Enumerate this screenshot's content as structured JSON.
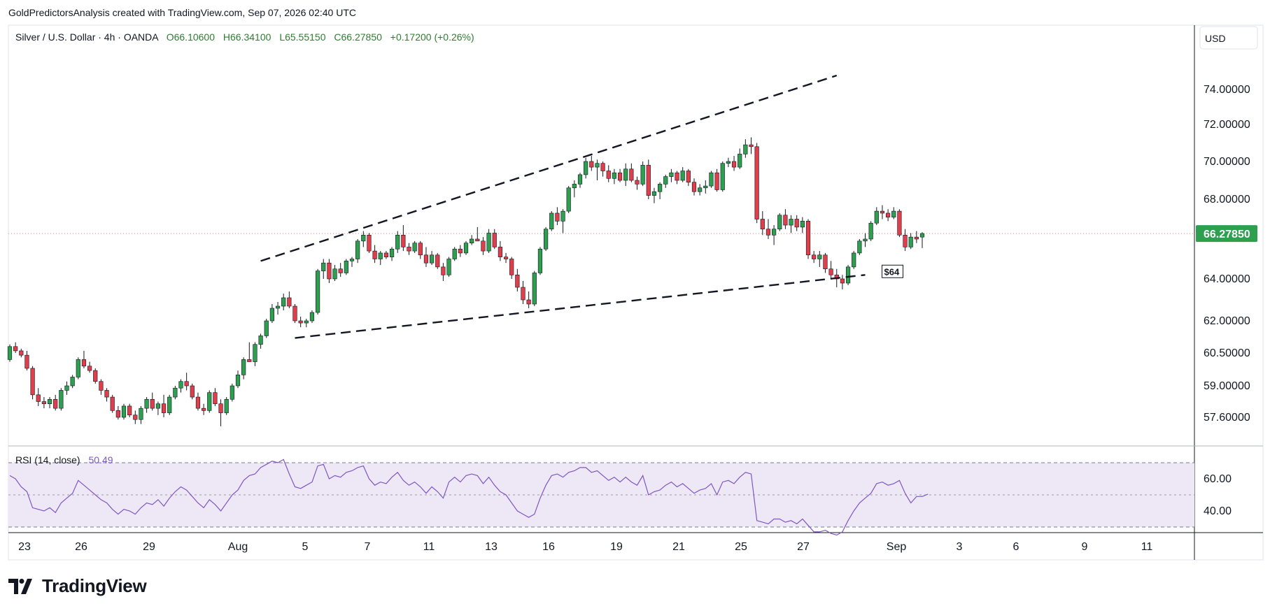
{
  "header": {
    "attribution": "GoldPredictorsAnalysis created with TradingView.com, Sep 07, 2026 02:40 UTC"
  },
  "legend": {
    "symbol": "Silver / U.S. Dollar · 4h · OANDA",
    "open": "O66.10600",
    "high": "H66.34100",
    "low": "L65.55150",
    "close": "C66.27850",
    "change": "+0.17200 (+0.26%)"
  },
  "currency_button": "USD",
  "last_price_label": "66.27850",
  "support_label": "$64",
  "rsi": {
    "label": "RSI (14, close)",
    "value": "50.49",
    "axis_labels": [
      "60.00",
      "40.00"
    ]
  },
  "price_axis_labels": [
    "74.00000",
    "72.00000",
    "70.00000",
    "68.00000",
    "64.00000",
    "62.00000",
    "60.50000",
    "59.00000",
    "57.60000"
  ],
  "time_axis_labels": [
    "23",
    "26",
    "29",
    "Aug",
    "5",
    "7",
    "11",
    "13",
    "16",
    "19",
    "21",
    "25",
    "27",
    "Sep",
    "3",
    "6",
    "9",
    "11"
  ],
  "brand": {
    "name": "TradingView"
  },
  "colors": {
    "up": "#26a69a",
    "up_fill": "#2e9e4f",
    "down": "#e03e4a",
    "rsi_line": "#7e57c2",
    "rsi_band": "#ede7f6",
    "price_tag": "#2e9e4f"
  },
  "chart_data": [
    {
      "type": "candlestick",
      "title": "Silver / U.S. Dollar · 4h · OANDA",
      "ylim": [
        56.5,
        76.5
      ],
      "price_scale_ticks": [
        74,
        72,
        70,
        68,
        64,
        62,
        60.5,
        59,
        57.6
      ],
      "last_price": 66.2785,
      "trendlines": [
        {
          "name": "upper channel",
          "from": [
            44,
            64.9
          ],
          "to": [
            145,
            74.8
          ]
        },
        {
          "name": "lower channel",
          "from": [
            50,
            61.2
          ],
          "to": [
            150,
            64.2
          ]
        }
      ],
      "annotations": [
        "$64"
      ],
      "candles": [
        [
          60.2,
          60.9,
          60.1,
          60.8
        ],
        [
          60.8,
          61.0,
          60.5,
          60.6
        ],
        [
          60.6,
          60.7,
          60.3,
          60.4
        ],
        [
          60.4,
          60.6,
          59.7,
          59.8
        ],
        [
          59.8,
          59.9,
          58.4,
          58.6
        ],
        [
          58.6,
          58.9,
          58.1,
          58.3
        ],
        [
          58.3,
          58.5,
          58.0,
          58.2
        ],
        [
          58.2,
          58.5,
          58.0,
          58.4
        ],
        [
          58.4,
          58.6,
          57.9,
          58.0
        ],
        [
          58.0,
          58.9,
          57.9,
          58.8
        ],
        [
          58.8,
          59.2,
          58.6,
          59.0
        ],
        [
          59.0,
          59.5,
          58.9,
          59.4
        ],
        [
          59.4,
          60.3,
          59.3,
          60.2
        ],
        [
          60.2,
          60.6,
          59.8,
          59.9
        ],
        [
          59.9,
          60.1,
          59.6,
          59.7
        ],
        [
          59.7,
          59.8,
          59.1,
          59.2
        ],
        [
          59.2,
          59.3,
          58.6,
          58.8
        ],
        [
          58.8,
          58.9,
          58.3,
          58.5
        ],
        [
          58.5,
          58.6,
          57.8,
          57.9
        ],
        [
          57.9,
          58.1,
          57.5,
          57.6
        ],
        [
          57.6,
          58.2,
          57.5,
          58.1
        ],
        [
          58.1,
          58.2,
          57.6,
          57.7
        ],
        [
          57.7,
          57.9,
          57.3,
          57.5
        ],
        [
          57.5,
          58.1,
          57.3,
          58.0
        ],
        [
          58.0,
          58.5,
          57.8,
          58.4
        ],
        [
          58.4,
          58.7,
          57.9,
          58.0
        ],
        [
          58.0,
          58.3,
          57.7,
          58.2
        ],
        [
          58.2,
          58.6,
          57.6,
          57.8
        ],
        [
          57.8,
          58.6,
          57.7,
          58.5
        ],
        [
          58.5,
          59.0,
          58.4,
          58.9
        ],
        [
          58.9,
          59.3,
          58.7,
          59.2
        ],
        [
          59.2,
          59.6,
          58.8,
          59.0
        ],
        [
          59.0,
          59.1,
          58.4,
          58.5
        ],
        [
          58.5,
          58.7,
          57.9,
          58.0
        ],
        [
          58.0,
          58.2,
          57.7,
          57.9
        ],
        [
          57.9,
          58.8,
          57.8,
          58.7
        ],
        [
          58.7,
          58.9,
          58.1,
          58.2
        ],
        [
          58.2,
          58.4,
          57.2,
          57.8
        ],
        [
          57.8,
          58.5,
          57.7,
          58.4
        ],
        [
          58.4,
          59.1,
          58.3,
          59.0
        ],
        [
          59.0,
          59.7,
          58.9,
          59.5
        ],
        [
          59.5,
          60.3,
          59.3,
          60.2
        ],
        [
          60.2,
          61.0,
          60.1,
          60.1
        ],
        [
          60.1,
          61.0,
          59.9,
          60.9
        ],
        [
          60.9,
          61.4,
          60.7,
          61.3
        ],
        [
          61.3,
          62.1,
          61.2,
          62.0
        ],
        [
          62.0,
          62.8,
          61.9,
          62.6
        ],
        [
          62.6,
          62.9,
          62.3,
          62.7
        ],
        [
          62.7,
          63.3,
          62.5,
          63.1
        ],
        [
          63.1,
          63.4,
          62.6,
          62.7
        ],
        [
          62.7,
          62.8,
          61.9,
          62.0
        ],
        [
          62.0,
          62.2,
          61.7,
          61.9
        ],
        [
          61.9,
          62.1,
          61.7,
          62.0
        ],
        [
          62.0,
          62.5,
          61.9,
          62.4
        ],
        [
          62.4,
          64.5,
          62.3,
          64.4
        ],
        [
          64.4,
          65.0,
          64.0,
          64.8
        ],
        [
          64.8,
          65.0,
          63.8,
          64.0
        ],
        [
          64.0,
          64.7,
          63.9,
          64.5
        ],
        [
          64.5,
          64.8,
          64.1,
          64.3
        ],
        [
          64.3,
          65.0,
          64.2,
          64.9
        ],
        [
          64.9,
          65.1,
          64.6,
          65.0
        ],
        [
          65.0,
          66.0,
          64.8,
          65.9
        ],
        [
          65.9,
          66.4,
          65.6,
          66.2
        ],
        [
          66.2,
          66.3,
          65.3,
          65.4
        ],
        [
          65.4,
          65.7,
          64.8,
          65.0
        ],
        [
          65.0,
          65.4,
          64.7,
          65.3
        ],
        [
          65.3,
          65.4,
          65.0,
          65.1
        ],
        [
          65.1,
          65.6,
          64.9,
          65.5
        ],
        [
          65.5,
          66.4,
          65.3,
          66.2
        ],
        [
          66.2,
          66.7,
          65.4,
          65.6
        ],
        [
          65.6,
          65.8,
          65.2,
          65.4
        ],
        [
          65.4,
          65.9,
          65.3,
          65.8
        ],
        [
          65.8,
          65.9,
          65.0,
          65.2
        ],
        [
          65.2,
          65.6,
          64.6,
          64.8
        ],
        [
          64.8,
          65.4,
          64.7,
          65.2
        ],
        [
          65.2,
          65.3,
          64.5,
          64.6
        ],
        [
          64.6,
          64.8,
          63.9,
          64.2
        ],
        [
          64.2,
          65.1,
          64.1,
          65.0
        ],
        [
          65.0,
          65.6,
          64.9,
          65.5
        ],
        [
          65.5,
          65.7,
          65.1,
          65.3
        ],
        [
          65.3,
          65.9,
          65.2,
          65.8
        ],
        [
          65.8,
          66.2,
          65.7,
          66.0
        ],
        [
          66.0,
          66.6,
          65.9,
          65.9
        ],
        [
          65.9,
          66.1,
          65.2,
          65.4
        ],
        [
          65.4,
          66.5,
          65.3,
          66.3
        ],
        [
          66.3,
          66.5,
          65.5,
          65.6
        ],
        [
          65.6,
          65.9,
          64.9,
          65.1
        ],
        [
          65.1,
          65.3,
          64.8,
          65.0
        ],
        [
          65.0,
          65.1,
          64.0,
          64.2
        ],
        [
          64.2,
          64.5,
          63.4,
          63.6
        ],
        [
          63.6,
          63.9,
          62.8,
          63.0
        ],
        [
          63.0,
          63.4,
          62.6,
          62.8
        ],
        [
          62.8,
          64.4,
          62.7,
          64.3
        ],
        [
          64.3,
          65.6,
          64.2,
          65.5
        ],
        [
          65.5,
          66.6,
          65.4,
          66.5
        ],
        [
          66.5,
          67.4,
          66.4,
          67.3
        ],
        [
          67.3,
          67.6,
          66.7,
          66.9
        ],
        [
          66.9,
          67.5,
          66.3,
          67.4
        ],
        [
          67.4,
          68.7,
          67.3,
          68.6
        ],
        [
          68.6,
          69.0,
          68.1,
          68.8
        ],
        [
          68.8,
          69.4,
          68.6,
          69.3
        ],
        [
          69.3,
          70.2,
          69.1,
          70.0
        ],
        [
          70.0,
          70.3,
          69.5,
          69.7
        ],
        [
          69.7,
          70.1,
          69.0,
          69.9
        ],
        [
          69.9,
          70.0,
          69.2,
          69.5
        ],
        [
          69.5,
          69.8,
          68.9,
          69.1
        ],
        [
          69.1,
          69.6,
          68.8,
          69.4
        ],
        [
          69.4,
          69.6,
          68.9,
          69.0
        ],
        [
          69.0,
          69.9,
          68.7,
          69.6
        ],
        [
          69.6,
          69.9,
          68.9,
          69.0
        ],
        [
          69.0,
          69.2,
          68.5,
          68.8
        ],
        [
          68.8,
          70.0,
          68.7,
          69.8
        ],
        [
          69.8,
          70.1,
          68.0,
          68.2
        ],
        [
          68.2,
          68.6,
          67.8,
          68.4
        ],
        [
          68.4,
          68.9,
          68.0,
          68.8
        ],
        [
          68.8,
          69.3,
          68.6,
          69.2
        ],
        [
          69.2,
          69.6,
          68.9,
          69.4
        ],
        [
          69.4,
          69.5,
          68.8,
          69.0
        ],
        [
          69.0,
          69.7,
          68.9,
          69.5
        ],
        [
          69.5,
          69.6,
          68.7,
          68.9
        ],
        [
          68.9,
          69.1,
          68.2,
          68.4
        ],
        [
          68.4,
          68.8,
          68.2,
          68.6
        ],
        [
          68.6,
          69.0,
          68.3,
          68.7
        ],
        [
          68.7,
          69.5,
          68.6,
          69.4
        ],
        [
          69.4,
          69.6,
          68.4,
          68.5
        ],
        [
          68.5,
          70.0,
          68.4,
          69.9
        ],
        [
          69.9,
          70.2,
          69.7,
          70.0
        ],
        [
          70.0,
          70.3,
          69.5,
          69.7
        ],
        [
          69.7,
          70.7,
          69.6,
          70.4
        ],
        [
          70.4,
          71.2,
          70.2,
          70.9
        ],
        [
          70.9,
          71.3,
          70.4,
          70.8
        ],
        [
          70.8,
          71.0,
          66.8,
          67.0
        ],
        [
          67.0,
          67.4,
          66.2,
          66.5
        ],
        [
          66.5,
          67.0,
          66.0,
          66.2
        ],
        [
          66.2,
          66.7,
          65.7,
          66.5
        ],
        [
          66.5,
          67.3,
          66.4,
          67.2
        ],
        [
          67.2,
          67.5,
          66.5,
          66.7
        ],
        [
          66.7,
          67.2,
          66.3,
          67.0
        ],
        [
          67.0,
          67.2,
          66.4,
          66.6
        ],
        [
          66.6,
          67.1,
          66.3,
          66.9
        ],
        [
          66.9,
          67.0,
          65.0,
          65.2
        ],
        [
          65.2,
          65.4,
          64.8,
          65.0
        ],
        [
          65.0,
          65.4,
          64.6,
          65.2
        ],
        [
          65.2,
          65.3,
          64.3,
          64.5
        ],
        [
          64.5,
          64.9,
          64.0,
          64.2
        ],
        [
          64.2,
          64.5,
          63.6,
          64.0
        ],
        [
          64.0,
          64.2,
          63.5,
          63.8
        ],
        [
          63.8,
          64.7,
          63.7,
          64.6
        ],
        [
          64.6,
          65.4,
          64.5,
          65.3
        ],
        [
          65.3,
          66.0,
          65.2,
          65.9
        ],
        [
          65.9,
          66.3,
          65.6,
          66.0
        ],
        [
          66.0,
          66.9,
          65.9,
          66.8
        ],
        [
          66.8,
          67.6,
          66.7,
          67.4
        ],
        [
          67.4,
          67.7,
          67.0,
          67.3
        ],
        [
          67.3,
          67.5,
          66.9,
          67.1
        ],
        [
          67.1,
          67.6,
          67.0,
          67.4
        ],
        [
          67.4,
          67.5,
          66.1,
          66.2
        ],
        [
          66.2,
          66.5,
          65.4,
          65.6
        ],
        [
          65.6,
          66.3,
          65.5,
          66.1
        ],
        [
          66.1,
          66.4,
          65.8,
          66.0
        ],
        [
          66.1,
          66.34,
          65.55,
          66.28
        ]
      ]
    },
    {
      "type": "line",
      "title": "RSI (14, close)",
      "ylim": [
        25,
        75
      ],
      "upper_band": 70,
      "lower_band": 30,
      "middle_line": 50,
      "last_value": 50.49,
      "values": [
        62,
        60,
        55,
        52,
        42,
        41,
        40,
        42,
        39,
        45,
        48,
        51,
        59,
        56,
        53,
        50,
        47,
        45,
        41,
        38,
        41,
        40,
        38,
        42,
        45,
        44,
        47,
        43,
        48,
        52,
        55,
        53,
        49,
        45,
        42,
        47,
        44,
        40,
        45,
        50,
        53,
        59,
        62,
        63,
        67,
        69,
        71,
        70,
        72,
        63,
        55,
        54,
        56,
        58,
        68,
        69,
        60,
        62,
        61,
        64,
        65,
        67,
        68,
        60,
        56,
        58,
        57,
        61,
        64,
        59,
        56,
        58,
        55,
        51,
        55,
        52,
        48,
        58,
        61,
        58,
        62,
        63,
        62,
        57,
        61,
        56,
        52,
        50,
        45,
        40,
        38,
        36,
        38,
        48,
        56,
        62,
        63,
        61,
        64,
        65,
        67,
        67,
        64,
        65,
        62,
        59,
        61,
        58,
        61,
        58,
        56,
        62,
        50,
        52,
        53,
        56,
        58,
        55,
        57,
        54,
        51,
        53,
        54,
        57,
        50,
        58,
        59,
        57,
        61,
        64,
        63,
        34,
        33,
        32,
        35,
        35,
        33,
        34,
        32,
        35,
        31,
        27,
        27,
        28,
        26,
        25,
        27,
        34,
        40,
        45,
        48,
        51,
        57,
        58,
        56,
        57,
        59,
        51,
        45,
        49,
        49,
        50.49
      ]
    }
  ]
}
